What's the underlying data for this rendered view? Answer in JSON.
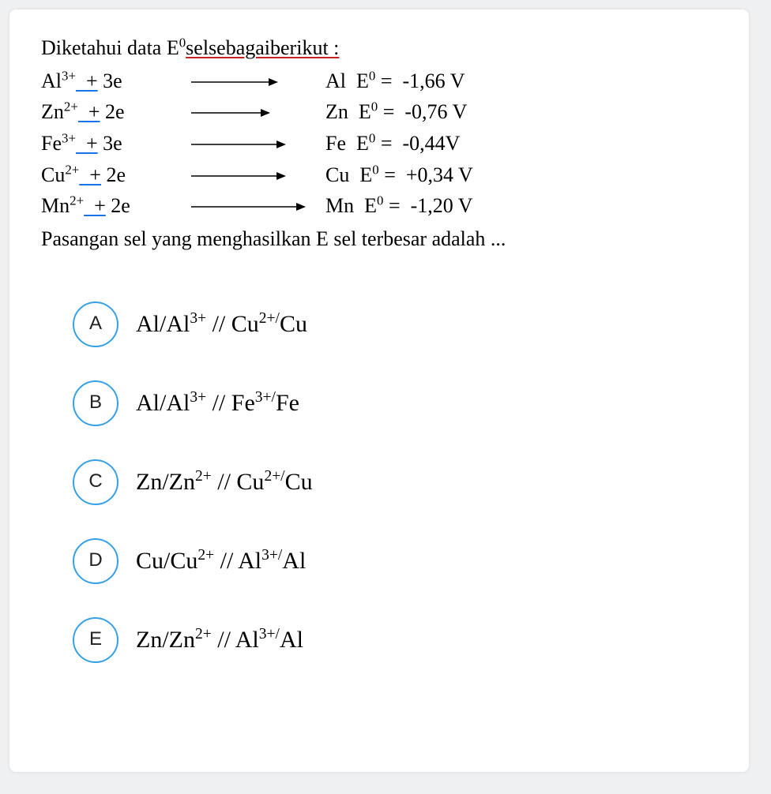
{
  "intro": {
    "prefix": "Diketahui data E",
    "sup": "0",
    "underlined": "selsebagaiberikut :"
  },
  "reactions": {
    "cols": {
      "left_w": 190,
      "mid_w": 170
    },
    "arrow_color": "#000000",
    "rows": [
      {
        "left": "Al<sup>3+</sup><span class='uline'>&nbsp;&nbsp;+</span>&nbsp;3e",
        "arrow_len": 110,
        "right": "Al&nbsp;&nbsp;E<sup>0</sup> =&nbsp; -1,66 V"
      },
      {
        "left": "Zn<sup>2+</sup><span class='uline'>&nbsp;&nbsp;+</span>&nbsp;2e",
        "arrow_len": 100,
        "right": "Zn&nbsp;&nbsp;E<sup>0</sup> =&nbsp; -0,76 V"
      },
      {
        "left": "Fe<sup>3+</sup><span class='uline'>&nbsp;&nbsp;+</span>&nbsp;3e",
        "arrow_len": 120,
        "right": "Fe&nbsp;&nbsp;E<sup>0</sup> =&nbsp; -0,44V"
      },
      {
        "left": "Cu<sup>2+</sup><span class='uline'>&nbsp;&nbsp;+</span>&nbsp;2e",
        "arrow_len": 120,
        "right": "Cu&nbsp;&nbsp;E<sup>0</sup> =&nbsp; +0,34 V"
      },
      {
        "left": "Mn<sup>2+</sup><span class='uline'>&nbsp;&nbsp;+</span>&nbsp;2e",
        "arrow_len": 145,
        "right": "Mn&nbsp;&nbsp;E<sup>0</sup> =&nbsp; -1,20 V"
      }
    ]
  },
  "question_tail": "Pasangan sel yang menghasilkan E sel terbesar adalah ...",
  "options": {
    "circle_color": "#37a1e8",
    "items": [
      {
        "letter": "A",
        "html": "Al/Al<sup>3+</sup> // Cu<sup>2+/</sup>Cu"
      },
      {
        "letter": "B",
        "html": "Al/Al<sup>3+</sup> // Fe<sup>3+/</sup>Fe"
      },
      {
        "letter": "C",
        "html": "Zn/Zn<sup>2+</sup> // Cu<sup>2+/</sup>Cu"
      },
      {
        "letter": "D",
        "html": "Cu/Cu<sup>2+</sup> // Al<sup>3+/</sup>Al"
      },
      {
        "letter": "E",
        "html": "Zn/Zn<sup>2+</sup> // Al<sup>3+/</sup>Al"
      }
    ]
  },
  "style": {
    "font_family": "Times New Roman",
    "body_font_size": 26,
    "option_font_size": 30,
    "underline_blue": "#1a73e8",
    "underline_red": "#c5221f",
    "background": "#ffffff",
    "page_bg": "#eef0f2"
  }
}
